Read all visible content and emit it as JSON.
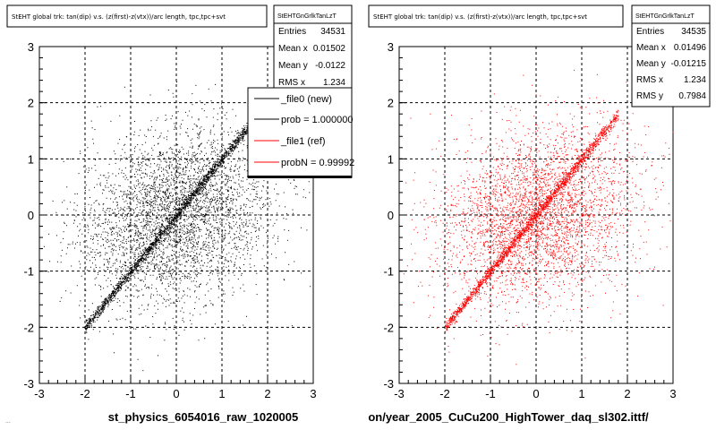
{
  "footer_text": "...",
  "legend": {
    "entries": [
      {
        "label": "_file0 (new)",
        "color": "#000000"
      },
      {
        "label": "prob = 1.000000",
        "color": "#000000"
      },
      {
        "label": "_file1 (ref)",
        "color": "#ff0000"
      },
      {
        "label": "probN = 0.99992",
        "color": "#ff0000"
      }
    ]
  },
  "chart_data": [
    {
      "type": "scatter",
      "title": "StEHT global trk: tan(dip) v.s. (z(first)-z(vtx))/arc length, tpc,tpc+svt",
      "xlabel": "st_physics_6054016_raw_1020005",
      "ylabel": "",
      "xlim": [
        -3,
        3
      ],
      "ylim": [
        -3,
        3
      ],
      "x_ticks": [
        "-3",
        "-2",
        "-1",
        "0",
        "1",
        "2",
        "3"
      ],
      "y_ticks": [
        "-3",
        "-2",
        "-1",
        "0",
        "1",
        "2",
        "3"
      ],
      "grid": true,
      "color": "#000000",
      "stats": {
        "name": "StEHTGnGrlkTanLzT",
        "rows": [
          {
            "label": "Entries",
            "value": "34531"
          },
          {
            "label": "Mean x",
            "value": "0.01502"
          },
          {
            "label": "Mean y",
            "value": "-0.0122"
          },
          {
            "label": "RMS x",
            "value": "1.234"
          }
        ]
      },
      "series": [
        {
          "description": "tight diagonal band y=x from (-2,-2) to (1.6,1.5) plus broad diffuse cloud centered at 0, wide in x",
          "diagonal_x_range": [
            -2.0,
            1.6
          ],
          "cloud_center": [
            0,
            0
          ],
          "cloud_rms_x": 1.234
        }
      ]
    },
    {
      "type": "scatter",
      "title": "StEHT global trk: tan(dip) v.s. (z(first)-z(vtx))/arc length, tpc,tpc+svt",
      "xlabel": "on/year_2005_CuCu200_HighTower_daq_sl302.ittf/",
      "ylabel": "",
      "xlim": [
        -3,
        3
      ],
      "ylim": [
        -3,
        3
      ],
      "x_ticks": [
        "-3",
        "-2",
        "-1",
        "0",
        "1",
        "2",
        "3"
      ],
      "y_ticks": [
        "-3",
        "-2",
        "-1",
        "0",
        "1",
        "2",
        "3"
      ],
      "grid": true,
      "color": "#ff0000",
      "stats": {
        "name": "StEHTGnGrlkTanLzT",
        "rows": [
          {
            "label": "Entries",
            "value": "34535"
          },
          {
            "label": "Mean x",
            "value": "0.01496"
          },
          {
            "label": "Mean y",
            "value": "-0.01215"
          },
          {
            "label": "RMS x",
            "value": "1.234"
          },
          {
            "label": "RMS y",
            "value": "0.7984"
          }
        ]
      },
      "series": [
        {
          "description": "tight diagonal band y=x from (-2,-2) to (1.8,1.9) plus broad diffuse cloud centered at 0, wide in x",
          "diagonal_x_range": [
            -2.0,
            1.8
          ],
          "cloud_center": [
            0,
            0
          ],
          "cloud_rms_x": 1.234,
          "cloud_rms_y": 0.7984
        }
      ]
    }
  ]
}
